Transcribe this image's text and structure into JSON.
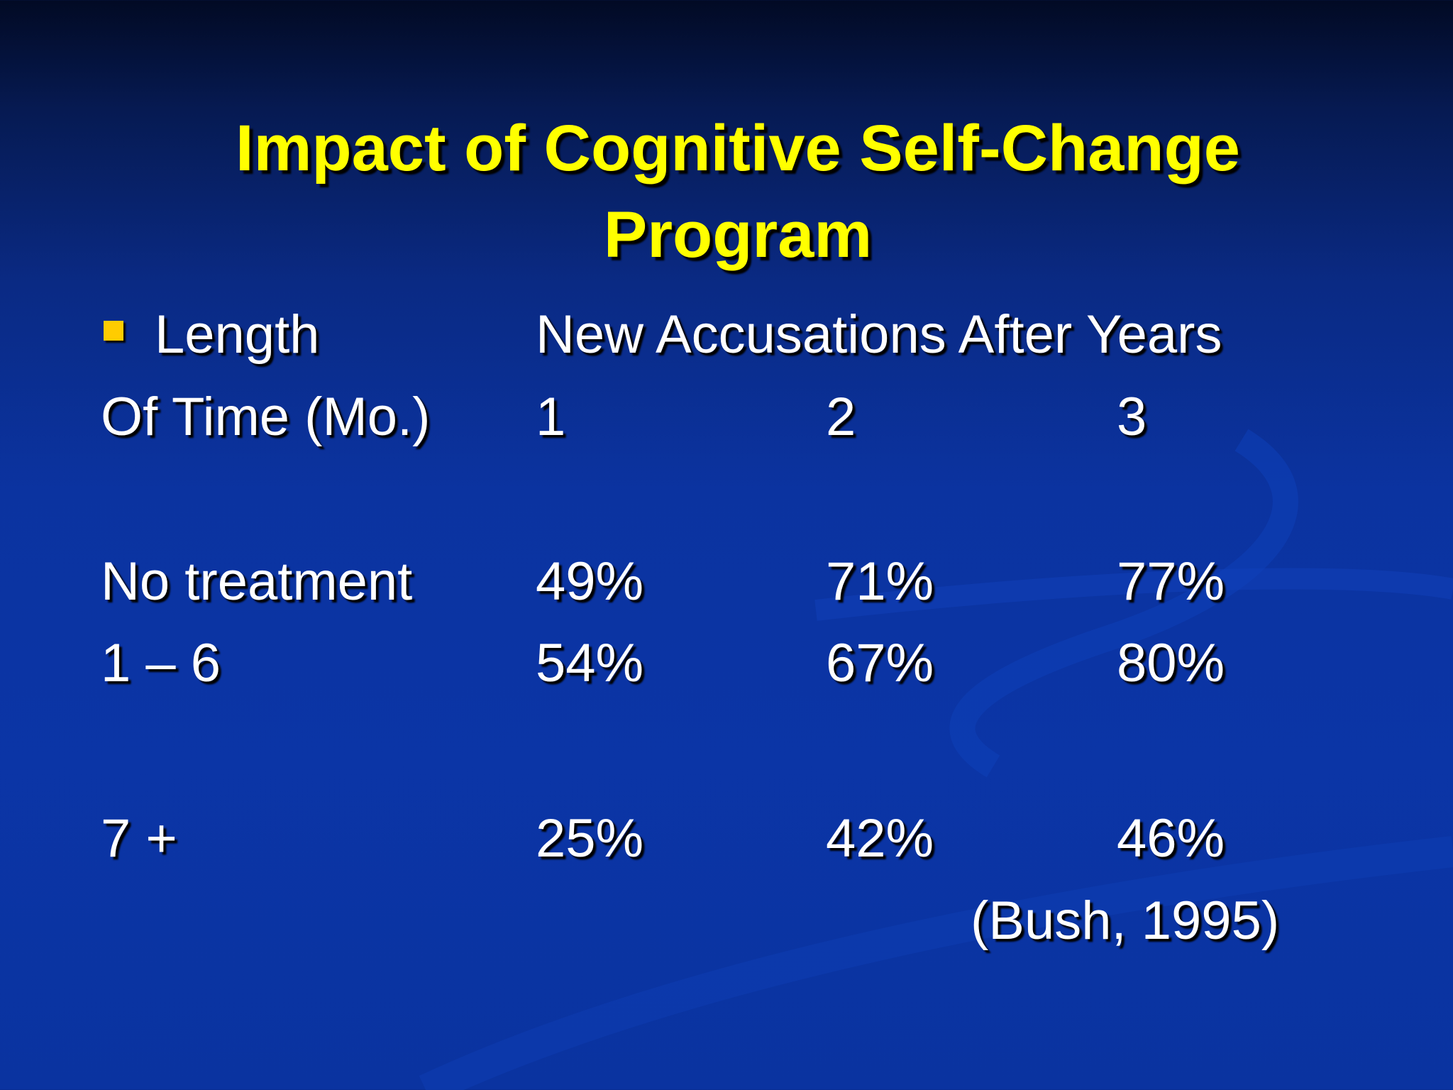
{
  "slide": {
    "title_lines": [
      "Impact of Cognitive Self-Change",
      "Program"
    ],
    "bullet_label": "Length",
    "column_heading": "New Accusations After Years",
    "row_header_label": "Of Time (Mo.)",
    "year_headers": [
      "1",
      "2",
      "3"
    ],
    "rows": [
      {
        "label": "No treatment",
        "values": [
          "49%",
          "71%",
          "77%"
        ]
      },
      {
        "label": "1 – 6",
        "values": [
          "54%",
          "67%",
          "80%"
        ]
      },
      {
        "label": "7 +",
        "values": [
          "25%",
          "42%",
          "46%"
        ]
      }
    ],
    "citation": "(Bush, 1995)"
  },
  "colors": {
    "title": "#ffff00",
    "text": "#ffffff",
    "bullet": "#ffcc00",
    "background": "#0b33a0"
  },
  "table_data": {
    "type": "table",
    "columns": [
      "1",
      "2",
      "3"
    ],
    "rows": [
      "No treatment",
      "1 – 6",
      "7 +"
    ],
    "values": [
      [
        49,
        71,
        77
      ],
      [
        54,
        67,
        80
      ],
      [
        25,
        42,
        46
      ]
    ],
    "unit": "%"
  }
}
